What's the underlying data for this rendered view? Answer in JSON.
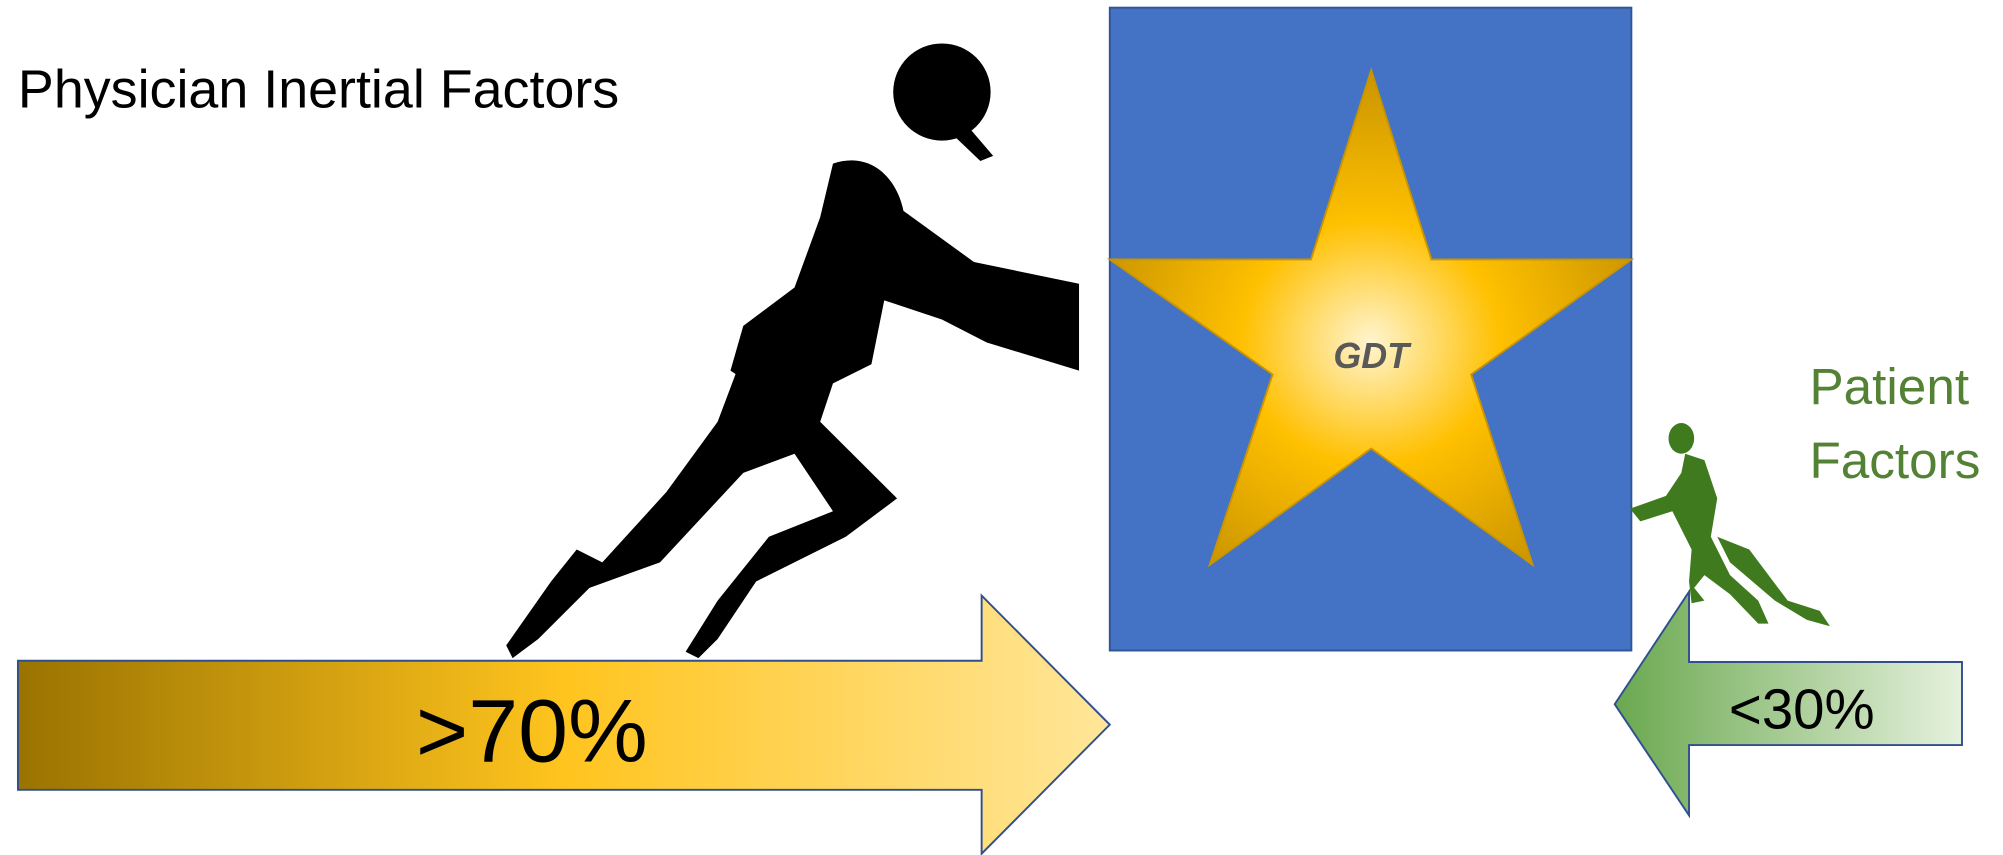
{
  "title": "Physician Inertial Factors",
  "center_label": "GDT",
  "physician_share": ">70%",
  "patient_label": [
    "Patient",
    "Factors"
  ],
  "patient_share": "<30%"
}
